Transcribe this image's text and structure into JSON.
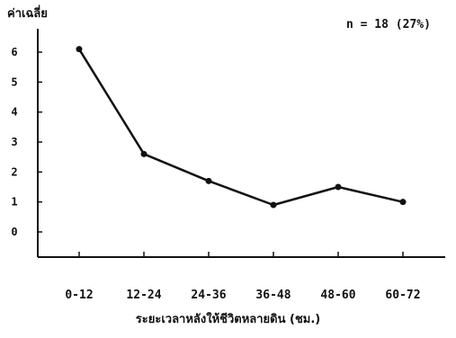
{
  "chart_data": {
    "type": "line",
    "categories": [
      "0-12",
      "12-24",
      "24-36",
      "36-48",
      "48-60",
      "60-72"
    ],
    "series": [
      {
        "values": [
          6.1,
          2.6,
          1.7,
          0.9,
          1.5,
          1.0
        ]
      }
    ],
    "ylabel": "ค่าเฉลี่ย",
    "xlabel": "ระยะเวลาหลังให้ชีวิตหลายดิน (ชม.)",
    "annotation": "n = 18 (27%)",
    "yticks": [
      "0",
      "1",
      "2",
      "3",
      "4",
      "5",
      "6"
    ],
    "ylim": [
      0,
      6.5
    ],
    "grid": false,
    "line_color": "#111111"
  }
}
